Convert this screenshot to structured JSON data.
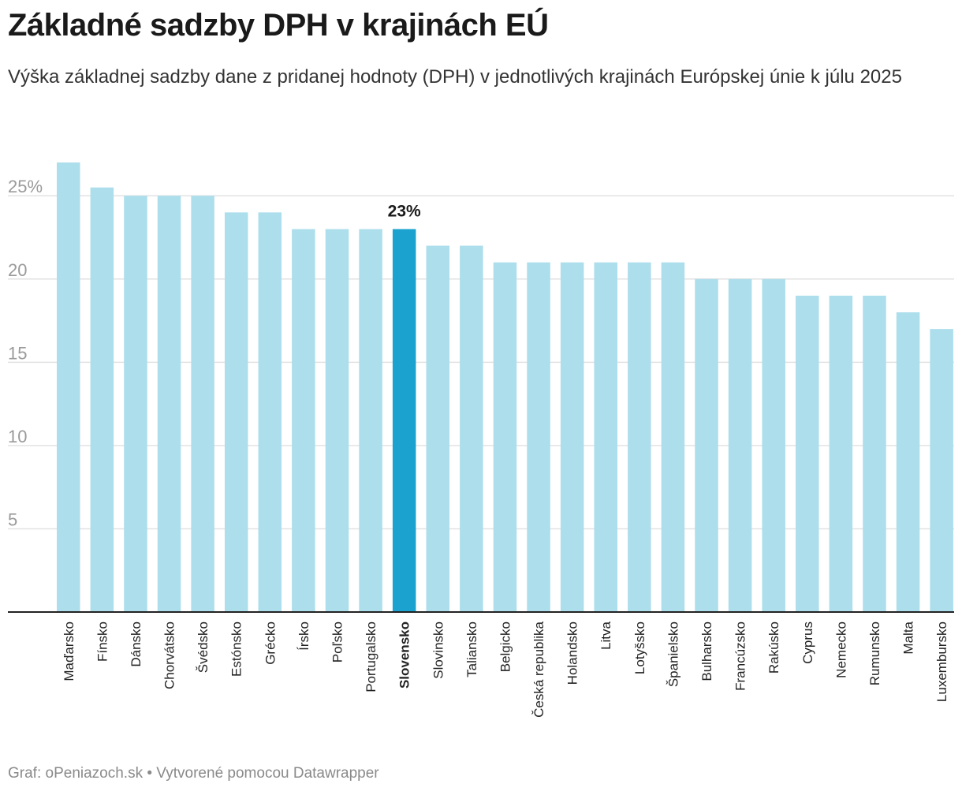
{
  "header": {
    "title": "Základné sadzby DPH v krajinách EÚ",
    "subtitle": "Výška základnej sadzby dane z pridanej hodnoty (DPH) v jednotlivých krajinách Európskej únie k júlu 2025"
  },
  "footer": {
    "text": "Graf: oPeniazoch.sk • Vytvorené pomocou Datawrapper"
  },
  "chart_data": {
    "type": "bar",
    "title": "Základné sadzby DPH v krajinách EÚ",
    "xlabel": "",
    "ylabel": "",
    "ylim": [
      0,
      27
    ],
    "yticks": [
      5,
      10,
      15,
      20,
      25
    ],
    "ytick_labels": [
      "5",
      "10",
      "15",
      "20",
      "25%"
    ],
    "grid": true,
    "categories": [
      "Maďarsko",
      "Fínsko",
      "Dánsko",
      "Chorvátsko",
      "Švédsko",
      "Estónsko",
      "Grécko",
      "Írsko",
      "Poľsko",
      "Portugalsko",
      "Slovensko",
      "Slovinsko",
      "Taliansko",
      "Belgicko",
      "Česká republika",
      "Holandsko",
      "Litva",
      "Lotyšsko",
      "Španielsko",
      "Bulharsko",
      "Francúzsko",
      "Rakúsko",
      "Cyprus",
      "Nemecko",
      "Rumunsko",
      "Malta",
      "Luxembursko"
    ],
    "values": [
      27,
      25.5,
      25,
      25,
      25,
      24,
      24,
      23,
      23,
      23,
      23,
      22,
      22,
      21,
      21,
      21,
      21,
      21,
      21,
      20,
      20,
      20,
      19,
      19,
      19,
      18,
      17
    ],
    "highlight": {
      "category": "Slovensko",
      "label": "23%"
    },
    "colors": {
      "bar": "#addeec",
      "highlight": "#1ba2cf",
      "grid": "#e2e2e2",
      "axis": "#222222"
    }
  }
}
